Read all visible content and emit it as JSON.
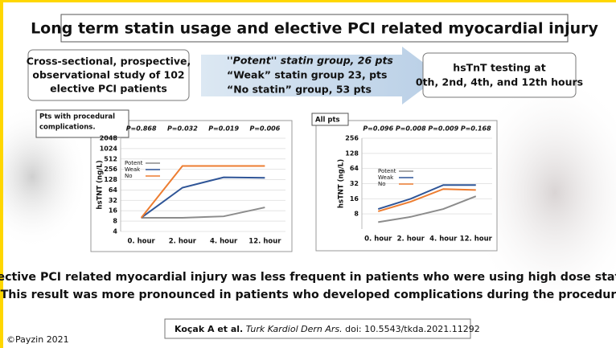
{
  "title": "Long term statin usage and elective PCI related myocardial injury",
  "study": [
    "Cross-sectional, prospective,",
    "observational study of 102",
    "elective PCI patients"
  ],
  "groups": [
    "''Potent'' statin group,  26 pts",
    "“Weak” statin group 23, pts",
    "“No statin” group, 53 pts"
  ],
  "testing": [
    "hsTnT testing at",
    "0th, 2nd, 4th, and 12th hours"
  ],
  "chart_data": [
    {
      "type": "line",
      "label": [
        "Pts with procedural",
        "complications."
      ],
      "y_label": "hsTNT (ng/L)",
      "categories": [
        "0. hour",
        "2. hour",
        "4. hour",
        "12. hour"
      ],
      "annotations": [
        "P=0.868",
        "P=0.032",
        "P=0.019",
        "P=0.006"
      ],
      "series": [
        {
          "name": "Potent",
          "color": "#8c8c8c",
          "values": [
            10,
            10,
            11,
            20
          ]
        },
        {
          "name": "Weak",
          "color": "#2f5597",
          "values": [
            10,
            75,
            150,
            145
          ]
        },
        {
          "name": "No",
          "color": "#ed7d31",
          "values": [
            10,
            320,
            320,
            320
          ]
        }
      ],
      "log_scale": true,
      "ylim": [
        4,
        2048
      ],
      "yticks": [
        4,
        8,
        16,
        32,
        64,
        128,
        256,
        512,
        1024,
        2048
      ],
      "grid": true
    },
    {
      "type": "line",
      "label": [
        "All pts"
      ],
      "y_label": "hsTNT (ng/L)",
      "categories": [
        "0. hour",
        "2. hour",
        "4. hour",
        "12. hour"
      ],
      "annotations": [
        "P=0.096",
        "P=0.008",
        "P=0.009",
        "P=0.168"
      ],
      "series": [
        {
          "name": "Potent",
          "color": "#8c8c8c",
          "values": [
            5.5,
            7,
            10,
            18
          ]
        },
        {
          "name": "Weak",
          "color": "#2f5597",
          "values": [
            10,
            16,
            30,
            30
          ]
        },
        {
          "name": "No",
          "color": "#ed7d31",
          "values": [
            9,
            14,
            25,
            24
          ]
        }
      ],
      "log_scale": true,
      "ylim": [
        4,
        256
      ],
      "yticks": [
        8,
        16,
        32,
        64,
        128,
        256
      ],
      "grid": true
    }
  ],
  "conclusion": [
    "Elective PCI related myocardial injury was less frequent in patients who were using high dose statins.",
    "This result was more pronounced in patients who developed complications during the procedure."
  ],
  "citation": {
    "authors": "Koçak A et al.",
    "journal": "Turk Kardiol Dern Ars.",
    "doi": "doi: 10.5543/tkda.2021.11292"
  },
  "copyright": "©Payzin 2021"
}
